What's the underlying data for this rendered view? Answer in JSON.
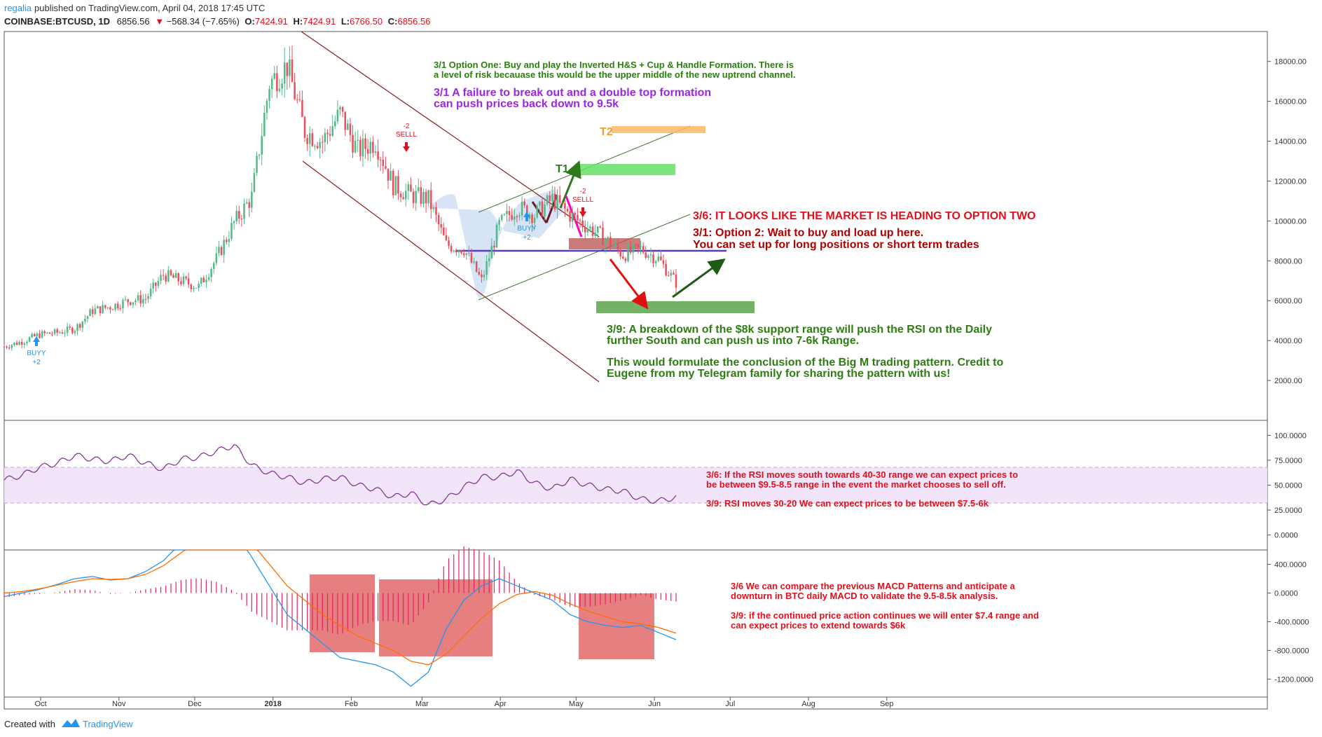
{
  "header": {
    "author": "regalia",
    "published": "published on TradingView.com, April 04, 2018 17:45 UTC",
    "symbol": "COINBASE:BTCUSD, 1D",
    "last": "6856.56",
    "change": "−568.34 (−7.65%)",
    "open_label": "O:",
    "open": "7424.91",
    "high_label": "H:",
    "high": "7424.91",
    "low_label": "L:",
    "low": "6766.50",
    "close_label": "C:",
    "close": "6856.56"
  },
  "footer": {
    "created_with": "Created with",
    "brand": "TradingView"
  },
  "colors": {
    "up": "#53b987",
    "down": "#eb4d5c",
    "channel": "#8b1a1a",
    "rsi": "#7b2d8b",
    "rsi_band": "#e9d7f5",
    "macd": "#2196f3",
    "signal": "#ff6d00",
    "hist": "#e91e63",
    "note_green": "#2e7d12",
    "note_red": "#e0101c",
    "note_purple": "#9c27e0",
    "note_darkred": "#b00000"
  },
  "chart_data": [
    {
      "type": "candlestick",
      "title": "",
      "x_ticks": [
        "Oct",
        "Nov",
        "Dec",
        "2018",
        "Feb",
        "Mar",
        "Apr",
        "May",
        "Jun",
        "Jul",
        "Aug",
        "Sep"
      ],
      "y_ticks": [
        "18000.00",
        "16000.00",
        "14000.00",
        "12000.00",
        "10000.00",
        "8000.00",
        "6000.00",
        "4000.00",
        "2000.00"
      ],
      "ylim": [
        0,
        19500
      ],
      "weekly_closes": [
        3700,
        3950,
        4300,
        4400,
        4600,
        5500,
        5700,
        6000,
        6100,
        7300,
        7000,
        6700,
        8100,
        9900,
        11200,
        16900,
        17800,
        14500,
        14000,
        15400,
        13500,
        14000,
        11800,
        11300,
        11100,
        8800,
        8600,
        7000,
        9800,
        10700,
        10300,
        11100,
        10300,
        9700,
        9100,
        8300,
        8600,
        8100,
        6900
      ],
      "markers": [
        {
          "label": "BUYY",
          "value": "+2"
        },
        {
          "label": "SELLL",
          "value": "-2"
        },
        {
          "label": "BUYY",
          "value": "+2"
        },
        {
          "label": "SELLL",
          "value": "-2"
        }
      ],
      "targets": [
        "T1",
        "T2"
      ]
    },
    {
      "type": "line",
      "name": "RSI",
      "y_ticks": [
        "100.0000",
        "75.0000",
        "50.0000",
        "25.0000",
        "0.0000"
      ],
      "band": [
        30,
        70
      ],
      "values": [
        55,
        60,
        68,
        72,
        80,
        76,
        74,
        80,
        72,
        66,
        76,
        78,
        84,
        90,
        70,
        62,
        58,
        52,
        56,
        58,
        50,
        46,
        38,
        42,
        30,
        36,
        48,
        58,
        58,
        64,
        52,
        46,
        56,
        50,
        46,
        44,
        36,
        34,
        38
      ]
    },
    {
      "type": "line",
      "name": "MACD",
      "y_ticks": [
        "400.0000",
        "0.0000",
        "-400.0000",
        "-800.0000",
        "-1200.0000"
      ],
      "macd": [
        -50,
        0,
        50,
        120,
        200,
        230,
        180,
        200,
        300,
        450,
        700,
        900,
        1000,
        900,
        500,
        100,
        -300,
        -500,
        -700,
        -900,
        -950,
        -1000,
        -1100,
        -1300,
        -1100,
        -500,
        -100,
        100,
        200,
        100,
        0,
        -100,
        -300,
        -400,
        -450,
        -480,
        -450,
        -550,
        -650
      ],
      "signal": [
        0,
        20,
        60,
        110,
        160,
        200,
        190,
        200,
        260,
        380,
        560,
        740,
        880,
        880,
        700,
        400,
        100,
        -100,
        -300,
        -450,
        -600,
        -700,
        -800,
        -950,
        -1000,
        -850,
        -600,
        -350,
        -150,
        -20,
        20,
        -30,
        -150,
        -250,
        -330,
        -400,
        -430,
        -480,
        -560
      ]
    }
  ],
  "annotations": {
    "option_one_l1": "3/1 Option One: Buy and play the Inverted H&S + Cup & Handle Formation. There is",
    "option_one_l2": "a level of risk becauase this would be the upper middle of the new uptrend channel.",
    "failure_l1": "3/1 A failure to break out and a double top formation",
    "failure_l2": "can push prices back down to 9.5k",
    "option_two_heading": "3/6: IT LOOKS LIKE THE MARKET IS HEADING TO OPTION TWO",
    "option_two_l1": "3/1: Option 2: Wait to buy and load up here.",
    "option_two_l2": "You can set up for long positions or short term trades",
    "breakdown_l1": "3/9: A breakdown of the $8k support range will push the RSI on the Daily",
    "breakdown_l2": "further South and can push us into 7-6k Range.",
    "bigm_l1": "This would formulate the conclusion of the Big M trading pattern. Credit to",
    "bigm_l2": "Eugene from my Telegram family for sharing the pattern with us!",
    "rsi_l1": "3/6: If the RSI moves south towards 40-30 range we can expect prices to",
    "rsi_l2": "be between $9.5-8.5 range in the event the market chooses to sell off.",
    "rsi_l3": "3/9: RSI moves 30-20 We can expect prices to be between $7.5-6k",
    "macd_l1": "3/6 We can compare the previous MACD Patterns and anticipate a",
    "macd_l2": "downturn in BTC daily MACD to validate the 9.5-8.5k analysis.",
    "macd_l3": "3/9: if the continued price action continues we will enter $7.4 range and",
    "macd_l4": "can expect prices to extend towards $6k"
  }
}
